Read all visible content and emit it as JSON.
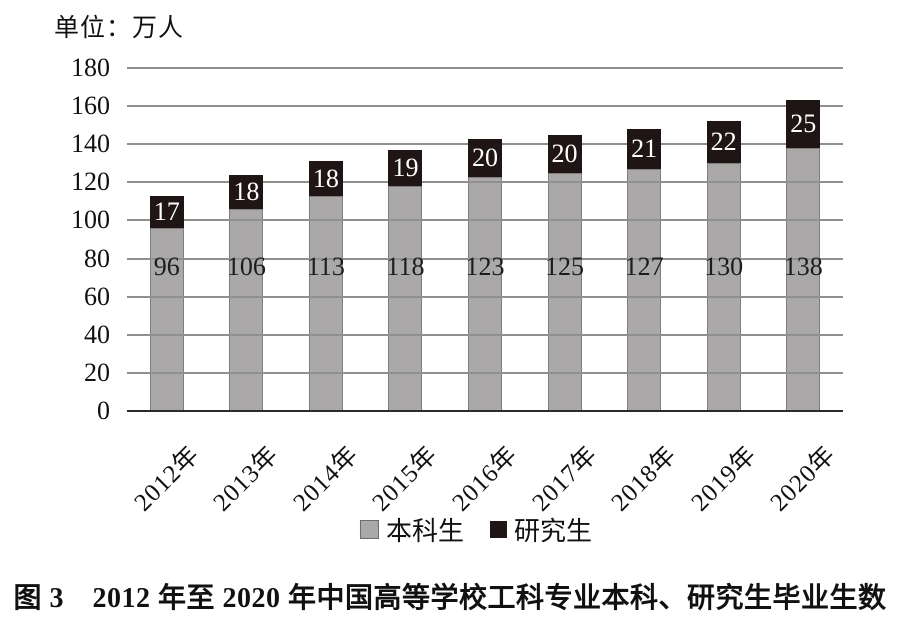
{
  "chart_data": {
    "type": "bar",
    "stacked": true,
    "unit_label": "单位：万人",
    "caption": "图 3　2012 年至 2020 年中国高等学校工科专业本科、研究生毕业生数",
    "categories": [
      "2012年",
      "2013年",
      "2014年",
      "2015年",
      "2016年",
      "2017年",
      "2018年",
      "2019年",
      "2020年"
    ],
    "series": [
      {
        "name": "本科生",
        "color": "#aaa8a8",
        "label_color": "#1c1c1c",
        "values": [
          96,
          106,
          113,
          118,
          123,
          125,
          127,
          130,
          138
        ]
      },
      {
        "name": "研究生",
        "color": "#1f1515",
        "label_color": "#ffffff",
        "values": [
          17,
          18,
          18,
          19,
          20,
          20,
          21,
          22,
          25
        ]
      }
    ],
    "ylim": [
      0,
      180
    ],
    "ytick_step": 20,
    "yticks": [
      0,
      20,
      40,
      60,
      80,
      100,
      120,
      140,
      160,
      180
    ],
    "grid": true,
    "legend_position": "bottom",
    "colors": {
      "gridline": "#8f8f8f",
      "axis": "#2b2b2b",
      "text": "#111111",
      "background": "#ffffff"
    }
  }
}
